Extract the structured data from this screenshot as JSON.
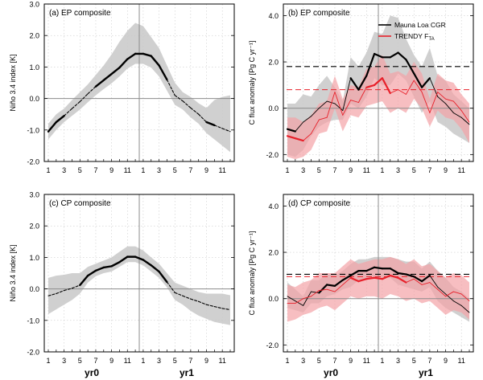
{
  "figure": {
    "x_tick_labels": [
      "1",
      "3",
      "5",
      "7",
      "9",
      "11",
      "1",
      "3",
      "5",
      "7",
      "9",
      "11"
    ],
    "year_labels": [
      "yr0",
      "yr1"
    ]
  },
  "colors": {
    "black": "#000000",
    "red": "#e8202a",
    "grey_band": "#c8c8c8",
    "red_band": "#f4a3a6",
    "grid": "#c0c0c0",
    "zero_line": "#8c8c8c"
  },
  "chart_data": [
    {
      "id": "a",
      "type": "line",
      "title": "(a) EP composite",
      "ylabel": "Niño 3.4 index [K]",
      "ylim": [
        -2,
        3
      ],
      "yticks": [
        "-2.0",
        "-1.0",
        "0.0",
        "1.0",
        "2.0",
        "3.0"
      ],
      "months": [
        1,
        2,
        3,
        4,
        5,
        6,
        7,
        8,
        9,
        10,
        11,
        12,
        13,
        14,
        15,
        16,
        17,
        18,
        19,
        20,
        21,
        22,
        23,
        24
      ],
      "series": [
        {
          "values": [
            -1.05,
            -0.75,
            -0.55,
            -0.32,
            -0.1,
            0.15,
            0.38,
            0.58,
            0.78,
            0.98,
            1.25,
            1.42,
            1.42,
            1.35,
            1.05,
            0.6,
            0.1,
            -0.08,
            -0.3,
            -0.5,
            -0.75,
            -0.85,
            -0.95,
            -1.05
          ],
          "significant": [
            1,
            1,
            1,
            0,
            0,
            0,
            1,
            1,
            1,
            1,
            1,
            1,
            1,
            1,
            1,
            1,
            0,
            0,
            0,
            0,
            1,
            1,
            0,
            0
          ],
          "band_low": [
            -1.3,
            -1.0,
            -0.75,
            -0.55,
            -0.35,
            -0.12,
            0.1,
            0.3,
            0.48,
            0.7,
            0.95,
            1.1,
            1.1,
            0.98,
            0.7,
            0.25,
            -0.2,
            -0.35,
            -0.6,
            -0.8,
            -1.1,
            -1.3,
            -1.5,
            -1.7
          ],
          "band_high": [
            -0.8,
            -0.5,
            -0.32,
            -0.05,
            0.2,
            0.45,
            0.75,
            1.05,
            1.4,
            1.8,
            2.15,
            2.4,
            2.3,
            1.95,
            1.6,
            1.05,
            0.5,
            0.2,
            0.05,
            -0.15,
            -0.3,
            -0.05,
            0.05,
            0.1
          ]
        }
      ]
    },
    {
      "id": "b",
      "type": "line",
      "title": "(b) EP composite",
      "ylabel": "C flux anomaly [Pg C yr⁻¹]",
      "ylim": [
        -2.3,
        4.5
      ],
      "yticks": [
        "-2.0",
        "0.0",
        "2.0",
        "4.0"
      ],
      "legend": [
        "Mauna Loa CGR",
        "TRENDY F"
      ],
      "legend_subscript": "TA",
      "legend_position": "top-right",
      "hlines": [
        {
          "value": 1.8,
          "color": "black"
        },
        {
          "value": 0.8,
          "color": "red"
        }
      ],
      "months": [
        1,
        2,
        3,
        4,
        5,
        6,
        7,
        8,
        9,
        10,
        11,
        12,
        13,
        14,
        15,
        16,
        17,
        18,
        19,
        20,
        21,
        22,
        23,
        24
      ],
      "series": [
        {
          "name": "Mauna Loa CGR",
          "values": [
            -0.9,
            -1.0,
            -0.6,
            -0.35,
            0.0,
            0.3,
            0.2,
            -0.1,
            1.3,
            0.8,
            1.4,
            2.35,
            2.2,
            2.2,
            2.4,
            2.1,
            1.5,
            0.9,
            1.3,
            0.5,
            0.2,
            -0.2,
            -0.4,
            -0.7
          ],
          "significant": [
            1,
            1,
            0,
            0,
            0,
            0,
            0,
            0,
            1,
            1,
            1,
            1,
            1,
            1,
            1,
            1,
            1,
            1,
            1,
            0,
            0,
            0,
            0,
            0
          ],
          "band_low": [
            -2.0,
            -2.1,
            -1.8,
            -1.2,
            -0.8,
            -0.6,
            -0.5,
            -0.5,
            0.2,
            0.0,
            0.5,
            1.3,
            1.0,
            1.0,
            1.5,
            1.2,
            0.5,
            -0.2,
            0.3,
            -0.6,
            -0.8,
            -1.1,
            -1.3,
            -1.5
          ],
          "band_high": [
            0.2,
            0.2,
            0.6,
            0.5,
            1.0,
            1.4,
            0.9,
            0.3,
            2.2,
            1.8,
            2.4,
            3.3,
            3.2,
            4.0,
            3.9,
            3.0,
            2.3,
            1.8,
            2.6,
            1.4,
            1.2,
            0.6,
            0.3,
            0.0
          ]
        },
        {
          "name": "TRENDY F",
          "values": [
            -1.2,
            -1.3,
            -1.4,
            -1.1,
            -0.5,
            -0.4,
            0.7,
            -0.3,
            0.35,
            0.25,
            0.9,
            1.0,
            1.3,
            0.65,
            0.8,
            0.6,
            1.2,
            0.7,
            -0.2,
            0.7,
            0.4,
            0.3,
            -0.1,
            -0.6
          ],
          "significant": [
            1,
            1,
            1,
            0,
            0,
            0,
            0,
            0,
            0,
            0,
            1,
            1,
            1,
            1,
            0,
            0,
            0,
            0,
            0,
            0,
            0,
            0,
            0,
            0
          ],
          "band_low": [
            -2.1,
            -2.2,
            -2.1,
            -1.8,
            -1.1,
            -1.0,
            0.0,
            -1.0,
            -0.3,
            -0.4,
            0.1,
            0.2,
            0.3,
            -0.2,
            0.0,
            -0.2,
            0.4,
            0.0,
            -0.8,
            -0.1,
            -0.4,
            -0.5,
            -0.9,
            -1.5
          ],
          "band_high": [
            -0.4,
            -0.4,
            -0.6,
            -0.3,
            0.2,
            0.3,
            1.4,
            0.4,
            1.0,
            0.9,
            1.7,
            1.8,
            2.3,
            1.5,
            1.6,
            1.4,
            2.0,
            1.5,
            0.4,
            1.5,
            1.2,
            1.1,
            0.6,
            0.2
          ]
        }
      ]
    },
    {
      "id": "c",
      "type": "line",
      "title": "(c) CP composite",
      "ylabel": "Niño 3.4 index [K]",
      "ylim": [
        -2,
        3
      ],
      "yticks": [
        "-2.0",
        "-1.0",
        "0.0",
        "1.0",
        "2.0",
        "3.0"
      ],
      "months": [
        1,
        2,
        3,
        4,
        5,
        6,
        7,
        8,
        9,
        10,
        11,
        12,
        13,
        14,
        15,
        16,
        17,
        18,
        19,
        20,
        21,
        22,
        23,
        24
      ],
      "series": [
        {
          "values": [
            -0.22,
            -0.15,
            -0.05,
            0.02,
            0.12,
            0.42,
            0.58,
            0.68,
            0.72,
            0.85,
            1.02,
            1.02,
            0.92,
            0.75,
            0.55,
            0.22,
            -0.12,
            -0.22,
            -0.32,
            -0.4,
            -0.5,
            -0.56,
            -0.62,
            -0.66
          ],
          "significant": [
            0,
            0,
            0,
            0,
            1,
            1,
            1,
            1,
            1,
            1,
            1,
            1,
            1,
            1,
            1,
            1,
            0,
            0,
            0,
            0,
            0,
            0,
            0,
            0
          ],
          "band_low": [
            -0.8,
            -0.65,
            -0.5,
            -0.35,
            -0.15,
            0.2,
            0.4,
            0.5,
            0.55,
            0.7,
            0.85,
            0.85,
            0.75,
            0.55,
            0.35,
            0.05,
            -0.35,
            -0.5,
            -0.7,
            -0.85,
            -0.95,
            -1.05,
            -1.1,
            -1.15
          ],
          "band_high": [
            0.35,
            0.42,
            0.45,
            0.5,
            0.5,
            0.7,
            0.8,
            0.9,
            1.0,
            1.18,
            1.35,
            1.35,
            1.22,
            1.0,
            0.8,
            0.5,
            0.2,
            0.1,
            0.0,
            -0.1,
            -0.15,
            -0.15,
            -0.15,
            -0.2
          ]
        }
      ]
    },
    {
      "id": "d",
      "type": "line",
      "title": "(d) CP composite",
      "ylabel": "C flux anomaly [Pg C yr⁻¹]",
      "ylim": [
        -2.3,
        4.5
      ],
      "yticks": [
        "-2.0",
        "0.0",
        "2.0",
        "4.0"
      ],
      "hlines": [
        {
          "value": 1.05,
          "color": "black"
        },
        {
          "value": 0.95,
          "color": "red"
        }
      ],
      "months": [
        1,
        2,
        3,
        4,
        5,
        6,
        7,
        8,
        9,
        10,
        11,
        12,
        13,
        14,
        15,
        16,
        17,
        18,
        19,
        20,
        21,
        22,
        23,
        24
      ],
      "series": [
        {
          "name": "Mauna Loa CGR",
          "values": [
            0.1,
            -0.1,
            -0.3,
            0.3,
            0.25,
            0.6,
            0.55,
            0.8,
            1.0,
            1.2,
            1.2,
            1.35,
            1.3,
            1.3,
            1.1,
            1.05,
            0.95,
            0.75,
            1.0,
            0.5,
            0.2,
            -0.1,
            -0.3,
            -0.6
          ],
          "significant": [
            0,
            0,
            0,
            0,
            1,
            1,
            1,
            1,
            1,
            1,
            1,
            1,
            1,
            1,
            1,
            1,
            1,
            1,
            1,
            0,
            0,
            0,
            0,
            0
          ],
          "band_low": [
            -0.4,
            -0.5,
            -0.6,
            -0.2,
            -0.2,
            0.1,
            0.2,
            0.4,
            0.5,
            0.8,
            0.8,
            0.9,
            0.9,
            0.9,
            0.6,
            0.5,
            0.4,
            0.3,
            0.5,
            -0.1,
            -0.4,
            -0.6,
            -0.8,
            -1.0
          ],
          "band_high": [
            0.7,
            0.4,
            0.1,
            0.8,
            0.8,
            1.1,
            1.0,
            1.2,
            1.5,
            1.7,
            1.7,
            1.8,
            1.8,
            1.8,
            1.7,
            1.6,
            1.6,
            1.3,
            1.6,
            1.2,
            0.9,
            0.5,
            0.3,
            0.0
          ]
        },
        {
          "name": "TRENDY F",
          "values": [
            -0.2,
            -0.2,
            0.0,
            0.1,
            0.35,
            0.4,
            0.3,
            0.6,
            0.9,
            0.75,
            0.85,
            0.9,
            0.85,
            1.0,
            0.9,
            0.7,
            0.85,
            0.6,
            0.7,
            0.4,
            0.1,
            0.3,
            0.2,
            -0.1
          ],
          "significant": [
            0,
            0,
            0,
            0,
            0,
            0,
            0,
            0,
            1,
            1,
            1,
            1,
            1,
            1,
            1,
            1,
            0,
            0,
            0,
            0,
            0,
            0,
            0,
            0
          ],
          "band_low": [
            -1.0,
            -0.9,
            -0.7,
            -0.6,
            -0.4,
            -0.3,
            -0.5,
            -0.2,
            0.1,
            0.0,
            0.1,
            0.1,
            0.0,
            0.2,
            0.1,
            -0.1,
            0.0,
            -0.2,
            -0.1,
            -0.4,
            -0.7,
            -0.5,
            -0.6,
            -0.9
          ],
          "band_high": [
            0.6,
            0.5,
            0.7,
            0.8,
            1.1,
            1.1,
            1.1,
            1.4,
            1.7,
            1.5,
            1.6,
            1.7,
            1.7,
            1.8,
            1.7,
            1.5,
            1.7,
            1.4,
            1.5,
            1.2,
            0.9,
            1.1,
            1.0,
            0.7
          ]
        }
      ]
    }
  ]
}
